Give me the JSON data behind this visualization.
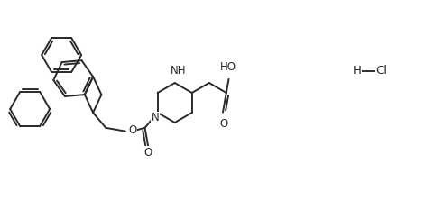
{
  "background_color": "#ffffff",
  "line_color": "#2a2a2a",
  "line_width": 1.4,
  "text_color": "#2a2a2a",
  "font_size": 8.5,
  "figsize": [
    4.71,
    2.22
  ],
  "dpi": 100,
  "xlim": [
    0.0,
    9.4
  ],
  "ylim": [
    0.3,
    4.7
  ]
}
